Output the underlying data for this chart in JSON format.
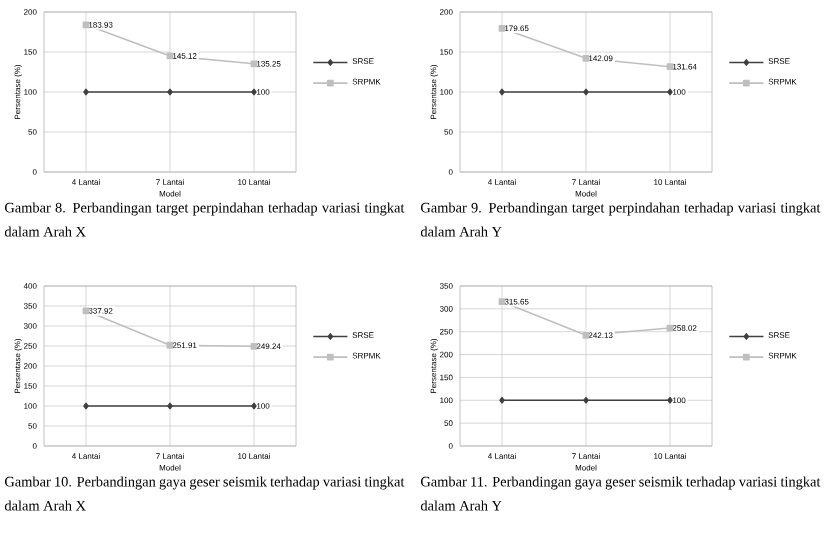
{
  "chart_data": [
    {
      "type": "line",
      "xlabel": "Model",
      "ylabel": "Persentase (%)",
      "categories": [
        "4 Lantai",
        "7 Lantai",
        "10 Lantai"
      ],
      "ylim": [
        0,
        200
      ],
      "yticks": [
        0,
        50,
        100,
        150,
        200
      ],
      "grid": true,
      "legend": "right",
      "series": [
        {
          "name": "SRSE",
          "color": "#404040",
          "marker": "diamond",
          "values": [
            100,
            100,
            100
          ],
          "value_labels": [
            null,
            null,
            "100"
          ]
        },
        {
          "name": "SRPMK",
          "color": "#bfbfbf",
          "marker": "square",
          "values": [
            183.93,
            145.12,
            135.25
          ],
          "value_labels": [
            "183.93",
            "145.12",
            "135.25"
          ]
        }
      ],
      "annotations": [
        "Gambar 8. Perbandingan target perpindahan terhadap variasi tingkat dalam Arah X"
      ]
    },
    {
      "type": "line",
      "xlabel": "Model",
      "ylabel": "Persentase (%)",
      "categories": [
        "4 Lantai",
        "7 Lantai",
        "10 Lantai"
      ],
      "ylim": [
        0,
        200
      ],
      "yticks": [
        0,
        50,
        100,
        150,
        200
      ],
      "grid": true,
      "legend": "right",
      "series": [
        {
          "name": "SRSE",
          "color": "#404040",
          "marker": "diamond",
          "values": [
            100,
            100,
            100
          ],
          "value_labels": [
            null,
            null,
            "100"
          ]
        },
        {
          "name": "SRPMK",
          "color": "#bfbfbf",
          "marker": "square",
          "values": [
            179.65,
            142.09,
            131.64
          ],
          "value_labels": [
            "179.65",
            "142.09",
            "131.64"
          ]
        }
      ],
      "annotations": [
        "Gambar 9. Perbandingan target perpindahan terhadap variasi tingkat dalam Arah Y"
      ]
    },
    {
      "type": "line",
      "xlabel": "Model",
      "ylabel": "Persentase (%)",
      "categories": [
        "4 Lantai",
        "7 Lantai",
        "10 Lantai"
      ],
      "ylim": [
        0,
        400
      ],
      "yticks": [
        0,
        50,
        100,
        150,
        200,
        250,
        300,
        350,
        400
      ],
      "grid": true,
      "legend": "right",
      "series": [
        {
          "name": "SRSE",
          "color": "#404040",
          "marker": "diamond",
          "values": [
            100,
            100,
            100
          ],
          "value_labels": [
            null,
            null,
            "100"
          ]
        },
        {
          "name": "SRPMK",
          "color": "#bfbfbf",
          "marker": "square",
          "values": [
            337.92,
            251.91,
            249.24
          ],
          "value_labels": [
            "337.92",
            "251.91",
            "249.24"
          ]
        }
      ],
      "annotations": [
        "Gambar 10. Perbandingan gaya geser seismik terhadap variasi tingkat dalam Arah X"
      ]
    },
    {
      "type": "line",
      "xlabel": "Model",
      "ylabel": "Persentase (%)",
      "categories": [
        "4 Lantai",
        "7 Lantai",
        "10 Lantai"
      ],
      "ylim": [
        0,
        350
      ],
      "yticks": [
        0,
        50,
        100,
        150,
        200,
        250,
        300,
        350
      ],
      "grid": true,
      "legend": "right",
      "series": [
        {
          "name": "SRSE",
          "color": "#404040",
          "marker": "diamond",
          "values": [
            100,
            100,
            100
          ],
          "value_labels": [
            null,
            null,
            "100"
          ]
        },
        {
          "name": "SRPMK",
          "color": "#bfbfbf",
          "marker": "square",
          "values": [
            315.65,
            242.13,
            258.02
          ],
          "value_labels": [
            "315.65",
            "242.13",
            "258.02"
          ]
        }
      ],
      "annotations": [
        "Gambar 11. Perbandingan gaya geser seismik terhadap variasi tingkat dalam Arah Y"
      ]
    }
  ]
}
